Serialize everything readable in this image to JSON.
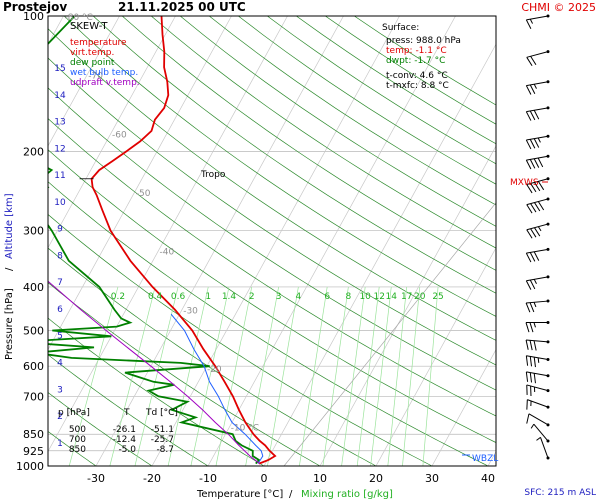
{
  "header": {
    "station": "Prostejov",
    "datetime": "21.11.2025 00 UTC",
    "copyright": "CHMI © 2025"
  },
  "legend": {
    "title": "SKEW-T",
    "items": [
      {
        "label": "temperature",
        "color": "#e00000"
      },
      {
        "label": "virt.temp.",
        "color": "#e00000"
      },
      {
        "label": "dew point",
        "color": "#008000"
      },
      {
        "label": "wet bulb temp.",
        "color": "#2060ff"
      },
      {
        "label": "udpraft v.temp.",
        "color": "#a000c0"
      }
    ]
  },
  "surface_box": {
    "title": "Surface:",
    "lines": [
      {
        "text": "press: 988.0 hPa",
        "color": "#000000"
      },
      {
        "text": "temp: -1.1 °C",
        "color": "#e00000"
      },
      {
        "text": "dwpt: -1.7 °C",
        "color": "#008000"
      },
      {
        "text": "t-conv: 4.6 °C",
        "color": "#000000"
      },
      {
        "text": "t-mxfc: 8.8 °C",
        "color": "#000000"
      }
    ]
  },
  "table": {
    "header": [
      "p [hPa]",
      "T",
      "Td [°C]"
    ],
    "rows": [
      [
        "500",
        "-26.1",
        "-51.1"
      ],
      [
        "700",
        "-12.4",
        "-25.7"
      ],
      [
        "850",
        "-5.0",
        "-8.7"
      ]
    ]
  },
  "axes": {
    "xlabel": "Temperature [°C]",
    "xlabel_sep": "/",
    "xlabel2": "Mixing ratio [g/kg]",
    "ylabel": "Pressure [hPa]",
    "ylabel_sep": "/",
    "ylabel2": "Altitude [km]",
    "temp_ticks": [
      "-30",
      "-20",
      "-10",
      "0",
      "10",
      "20",
      "30",
      "40"
    ],
    "pressure_ticks": [
      "100",
      "200",
      "300",
      "400",
      "500",
      "600",
      "700",
      "850",
      "925",
      "1000"
    ],
    "altitude_ticks": [
      "1",
      "2",
      "3",
      "4",
      "5",
      "6",
      "7",
      "8",
      "9",
      "10",
      "11",
      "12",
      "13",
      "14",
      "15"
    ],
    "mixing_ratio_labels": [
      "0.2",
      "0.4",
      "0.6",
      "1",
      "1.4",
      "2",
      "3",
      "4",
      "6",
      "8",
      "10",
      "12",
      "14",
      "17",
      "20",
      "25"
    ],
    "isotherm_labels": [
      "-80 °C",
      "-70",
      "-60",
      "-50",
      "-40",
      "-30",
      "-20",
      "-10 °C"
    ]
  },
  "annotations": {
    "tropo": "Tropo",
    "mxws": "MXWS",
    "wbzl": "WBZL",
    "sfc": "SFC: 215 m ASL"
  },
  "chart_data": {
    "type": "line",
    "title": "Prostejov 21.11.2025 00 UTC",
    "xlabel": "Temperature [°C] / Mixing ratio [g/kg]",
    "ylabel": "Pressure [hPa] / Altitude [km]",
    "xlim": [
      -36,
      44
    ],
    "ylim": [
      1000,
      100
    ],
    "y_scale": "log",
    "skew": true,
    "grid": true,
    "legend": "top-left",
    "series": [
      {
        "name": "temperature",
        "color": "#e00000",
        "points": [
          [
            988,
            -1.1
          ],
          [
            970,
            0.2
          ],
          [
            950,
            1.0
          ],
          [
            925,
            -0.5
          ],
          [
            900,
            -1.8
          ],
          [
            880,
            -3.2
          ],
          [
            850,
            -5.0
          ],
          [
            800,
            -7.6
          ],
          [
            750,
            -10.0
          ],
          [
            700,
            -12.4
          ],
          [
            650,
            -15.3
          ],
          [
            600,
            -18.5
          ],
          [
            550,
            -22.3
          ],
          [
            500,
            -26.1
          ],
          [
            450,
            -31.2
          ],
          [
            400,
            -37.5
          ],
          [
            350,
            -44.0
          ],
          [
            300,
            -50.5
          ],
          [
            270,
            -54.0
          ],
          [
            250,
            -56.5
          ],
          [
            240,
            -58.0
          ],
          [
            230,
            -59.0
          ],
          [
            220,
            -58.5
          ],
          [
            210,
            -57.0
          ],
          [
            200,
            -55.5
          ],
          [
            190,
            -54.0
          ],
          [
            180,
            -53.0
          ],
          [
            170,
            -53.5
          ],
          [
            160,
            -53.0
          ],
          [
            150,
            -53.5
          ],
          [
            140,
            -55.0
          ],
          [
            130,
            -57.0
          ],
          [
            120,
            -58.5
          ],
          [
            110,
            -60.5
          ],
          [
            100,
            -62.5
          ]
        ]
      },
      {
        "name": "dew point",
        "color": "#008000",
        "points": [
          [
            988,
            -1.7
          ],
          [
            970,
            -1.5
          ],
          [
            950,
            -3.0
          ],
          [
            925,
            -3.5
          ],
          [
            900,
            -6.0
          ],
          [
            880,
            -7.5
          ],
          [
            850,
            -8.7
          ],
          [
            800,
            -19.0
          ],
          [
            780,
            -17.0
          ],
          [
            750,
            -22.0
          ],
          [
            720,
            -20.0
          ],
          [
            700,
            -25.7
          ],
          [
            680,
            -28.0
          ],
          [
            660,
            -24.0
          ],
          [
            650,
            -28.0
          ],
          [
            620,
            -34.0
          ],
          [
            600,
            -19.5
          ],
          [
            590,
            -25.0
          ],
          [
            575,
            -45.0
          ],
          [
            560,
            -52.0
          ],
          [
            545,
            -42.0
          ],
          [
            530,
            -56.0
          ],
          [
            515,
            -40.0
          ],
          [
            500,
            -51.1
          ],
          [
            490,
            -40.0
          ],
          [
            480,
            -38.0
          ],
          [
            470,
            -40.0
          ],
          [
            450,
            -42.0
          ],
          [
            400,
            -47.0
          ],
          [
            350,
            -55.0
          ],
          [
            300,
            -61.0
          ],
          [
            280,
            -64.0
          ],
          [
            260,
            -67.0
          ],
          [
            245,
            -70.0
          ],
          [
            240,
            -66.0
          ],
          [
            230,
            -68.0
          ],
          [
            220,
            -67.0
          ],
          [
            205,
            -73.0
          ],
          [
            200,
            -77.0
          ],
          [
            190,
            -78.0
          ],
          [
            180,
            -76.0
          ],
          [
            170,
            -76.5
          ],
          [
            150,
            -78.0
          ],
          [
            130,
            -82.0
          ],
          [
            115,
            -80.0
          ],
          [
            100,
            -78.0
          ]
        ]
      },
      {
        "name": "wet bulb temp.",
        "color": "#2060ff",
        "points": [
          [
            988,
            -1.3
          ],
          [
            950,
            -1.2
          ],
          [
            925,
            -2.0
          ],
          [
            900,
            -3.5
          ],
          [
            850,
            -6.5
          ],
          [
            800,
            -10.0
          ],
          [
            750,
            -12.5
          ],
          [
            700,
            -15.0
          ],
          [
            650,
            -18.0
          ],
          [
            600,
            -20.5
          ],
          [
            550,
            -24.0
          ],
          [
            500,
            -27.5
          ],
          [
            460,
            -31.5
          ]
        ]
      },
      {
        "name": "udpraft v.temp.",
        "color": "#a000c0",
        "points": [
          [
            988,
            -1.0
          ],
          [
            950,
            -3.5
          ],
          [
            900,
            -6.5
          ],
          [
            850,
            -9.5
          ],
          [
            800,
            -13.0
          ],
          [
            750,
            -16.5
          ],
          [
            700,
            -20.5
          ],
          [
            650,
            -25.0
          ],
          [
            600,
            -30.0
          ],
          [
            550,
            -35.5
          ],
          [
            500,
            -41.5
          ],
          [
            450,
            -48.0
          ],
          [
            400,
            -55.0
          ],
          [
            350,
            -63.0
          ],
          [
            300,
            -71.5
          ],
          [
            250,
            -81.0
          ],
          [
            200,
            -91.5
          ],
          [
            150,
            -103.0
          ],
          [
            100,
            -117.0
          ]
        ]
      }
    ],
    "wind_barbs": [
      {
        "p": 100,
        "dir": 260,
        "spd": 15
      },
      {
        "p": 120,
        "dir": 255,
        "spd": 20
      },
      {
        "p": 140,
        "dir": 260,
        "spd": 25
      },
      {
        "p": 160,
        "dir": 260,
        "spd": 30
      },
      {
        "p": 185,
        "dir": 260,
        "spd": 35
      },
      {
        "p": 205,
        "dir": 260,
        "spd": 40
      },
      {
        "p": 230,
        "dir": 255,
        "spd": 40
      },
      {
        "p": 255,
        "dir": 255,
        "spd": 40
      },
      {
        "p": 290,
        "dir": 255,
        "spd": 35
      },
      {
        "p": 330,
        "dir": 260,
        "spd": 30
      },
      {
        "p": 380,
        "dir": 260,
        "spd": 25
      },
      {
        "p": 430,
        "dir": 265,
        "spd": 25
      },
      {
        "p": 480,
        "dir": 270,
        "spd": 25
      },
      {
        "p": 530,
        "dir": 275,
        "spd": 30
      },
      {
        "p": 580,
        "dir": 280,
        "spd": 35
      },
      {
        "p": 630,
        "dir": 280,
        "spd": 30
      },
      {
        "p": 680,
        "dir": 285,
        "spd": 25
      },
      {
        "p": 740,
        "dir": 290,
        "spd": 15
      },
      {
        "p": 810,
        "dir": 300,
        "spd": 10
      },
      {
        "p": 880,
        "dir": 320,
        "spd": 5
      },
      {
        "p": 960,
        "dir": 340,
        "spd": 5
      }
    ],
    "mxws_pressure": 230,
    "wbzl_pressure": 980,
    "tropopause_pressure": 230
  }
}
